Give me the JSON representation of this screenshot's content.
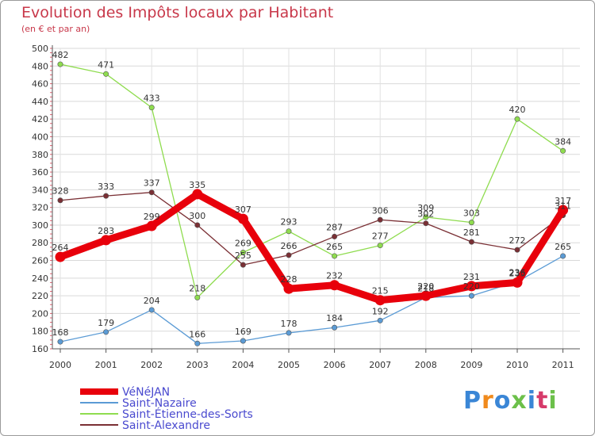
{
  "title": "Evolution des Impôts locaux par Habitant",
  "subtitle": "(en € et par an)",
  "logo": "Proxiti",
  "chart_data": {
    "type": "line",
    "title": "Evolution des Impôts locaux par Habitant",
    "subtitle": "(en € et par an)",
    "xlabel": "",
    "ylabel": "",
    "categories": [
      "2000",
      "2001",
      "2002",
      "2003",
      "2004",
      "2005",
      "2006",
      "2007",
      "2008",
      "2009",
      "2010",
      "2011"
    ],
    "ylim": [
      160,
      500
    ],
    "yticks": [
      160,
      180,
      200,
      220,
      240,
      260,
      280,
      300,
      320,
      340,
      360,
      380,
      400,
      420,
      440,
      460,
      480,
      500
    ],
    "grid": true,
    "legend_position": "bottom-left",
    "series": [
      {
        "name": "VéNéJAN",
        "color": "#e8000b",
        "values": [
          264,
          283,
          299,
          335,
          307,
          228,
          232,
          215,
          220,
          231,
          235,
          317
        ],
        "labels": [
          "264",
          "283",
          "299",
          "335",
          "307",
          "228",
          "232",
          "215",
          "220",
          "231",
          "235",
          "317"
        ]
      },
      {
        "name": "Saint-Nazaire",
        "color": "#5b9bd5",
        "values": [
          168,
          179,
          204,
          166,
          169,
          178,
          184,
          192,
          218,
          220,
          236,
          265
        ],
        "labels": [
          "168",
          "179",
          "204",
          "166",
          "169",
          "178",
          "184",
          "192",
          "218",
          "220",
          "236",
          "265"
        ]
      },
      {
        "name": "Saint-Étienne-des-Sorts",
        "color": "#8fdc4f",
        "values": [
          482,
          471,
          433,
          218,
          269,
          293,
          265,
          277,
          309,
          303,
          420,
          384
        ],
        "labels": [
          "482",
          "471",
          "433",
          "218",
          "269",
          "293",
          "265",
          "277",
          "309",
          "303",
          "420",
          "384"
        ]
      },
      {
        "name": "Saint-Alexandre",
        "color": "#7a2f34",
        "values": [
          328,
          333,
          337,
          300,
          255,
          266,
          287,
          306,
          302,
          281,
          272,
          311
        ],
        "labels": [
          "328",
          "333",
          "337",
          "300",
          "255",
          "266",
          "287",
          "306",
          "302",
          "281",
          "272",
          "311"
        ]
      }
    ]
  }
}
